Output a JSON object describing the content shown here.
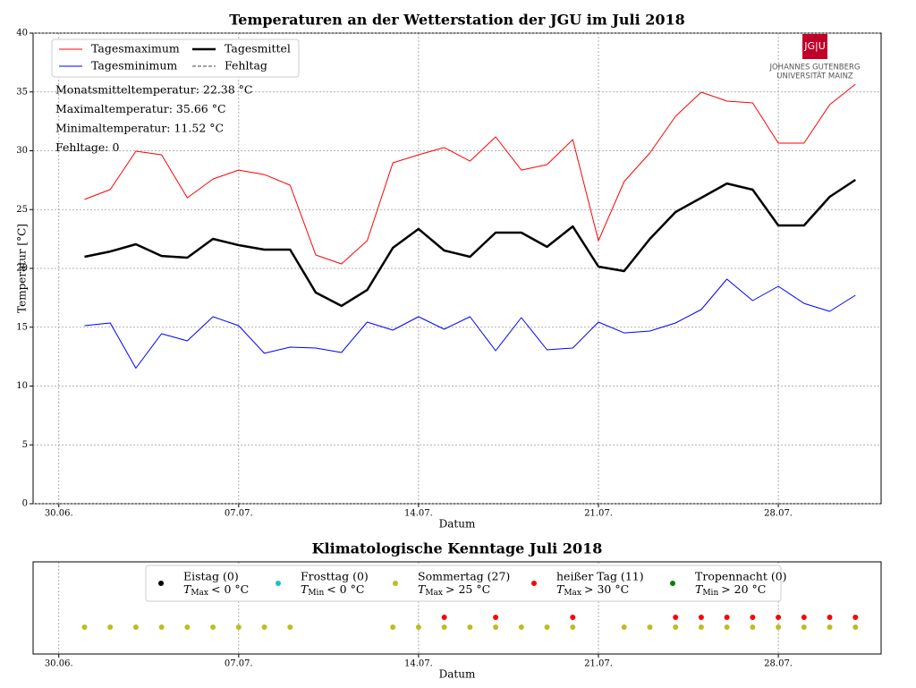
{
  "chart_data": [
    {
      "type": "line",
      "title": "Temperaturen an der Wetterstation der JGU im Juli 2018",
      "xlabel": "Datum",
      "ylabel": "Temperatur [°C]",
      "x": [
        "01.07.",
        "02.07.",
        "03.07.",
        "04.07.",
        "05.07.",
        "06.07.",
        "07.07.",
        "08.07.",
        "09.07.",
        "10.07.",
        "11.07.",
        "12.07.",
        "13.07.",
        "14.07.",
        "15.07.",
        "16.07.",
        "17.07.",
        "18.07.",
        "19.07.",
        "20.07.",
        "21.07.",
        "22.07.",
        "23.07.",
        "24.07.",
        "25.07.",
        "26.07.",
        "27.07.",
        "28.07.",
        "29.07.",
        "30.07.",
        "31.07."
      ],
      "series": [
        {
          "name": "Tagesmaximum",
          "color": "#ff0000",
          "linewidth": 1,
          "values": [
            25.86,
            26.7,
            29.96,
            29.66,
            26.0,
            27.6,
            28.36,
            27.98,
            27.07,
            21.14,
            20.38,
            22.36,
            28.97,
            29.66,
            30.27,
            29.12,
            31.18,
            28.36,
            28.82,
            30.95,
            22.36,
            27.38,
            29.81,
            32.93,
            34.98,
            34.22,
            34.07,
            30.65,
            30.65,
            33.92,
            35.66
          ]
        },
        {
          "name": "Tagesminimum",
          "color": "#0000ff",
          "linewidth": 1,
          "values": [
            15.13,
            15.36,
            11.52,
            14.45,
            13.84,
            15.89,
            15.13,
            12.78,
            13.31,
            13.23,
            12.85,
            15.44,
            14.75,
            15.89,
            14.83,
            15.89,
            13.0,
            15.82,
            13.08,
            13.23,
            15.44,
            14.52,
            14.68,
            15.36,
            16.5,
            19.09,
            17.26,
            18.48,
            17.03,
            16.35,
            17.72
          ]
        },
        {
          "name": "Tagesmittel",
          "color": "#000000",
          "linewidth": 2.5,
          "values": [
            20.99,
            21.44,
            22.05,
            21.06,
            20.91,
            22.51,
            21.98,
            21.6,
            21.6,
            17.95,
            16.81,
            18.17,
            21.75,
            23.35,
            21.52,
            20.99,
            23.04,
            23.04,
            21.83,
            23.57,
            20.15,
            19.77,
            22.51,
            24.79,
            26.0,
            27.22,
            26.69,
            23.65,
            23.65,
            26.08,
            27.53
          ]
        }
      ],
      "legend_extra": [
        {
          "name": "Fehltag",
          "color": "#444444",
          "dashed": true
        }
      ],
      "legend": "upper left",
      "annotations": [
        "Monatsmitteltemperatur: 22.38 °C",
        "Maximaltemperatur: 35.66 °C",
        "Minimaltemperatur: 11.52 °C",
        "Fehltage: 0"
      ],
      "xlim": [
        "29.06.",
        "01.08."
      ],
      "xticks": [
        "30.06.",
        "07.07.",
        "14.07.",
        "21.07.",
        "28.07."
      ],
      "ylim": [
        0,
        40
      ],
      "yticks": [
        0,
        5,
        10,
        15,
        20,
        25,
        30,
        35,
        40
      ],
      "grid": true
    },
    {
      "type": "scatter",
      "title": "Klimatologische Kenntage Juli 2018",
      "xlabel": "Datum",
      "series": [
        {
          "name": "Eistag (0)",
          "color": "#000000",
          "criterion": {
            "var": "T",
            "sub": "Max",
            "rest": "< 0 °C"
          },
          "dates": []
        },
        {
          "name": "Frosttag (0)",
          "color": "#17becf",
          "criterion": {
            "var": "T",
            "sub": "Min",
            "rest": "< 0 °C"
          },
          "dates": []
        },
        {
          "name": "Sommertag (27)",
          "color": "#bcbd22",
          "criterion": {
            "var": "T",
            "sub": "Max",
            "rest": "> 25 °C"
          },
          "dates": [
            "01.07.",
            "02.07.",
            "03.07.",
            "04.07.",
            "05.07.",
            "06.07.",
            "07.07.",
            "08.07.",
            "09.07.",
            "13.07.",
            "14.07.",
            "15.07.",
            "16.07.",
            "17.07.",
            "18.07.",
            "19.07.",
            "20.07.",
            "22.07.",
            "23.07.",
            "24.07.",
            "25.07.",
            "26.07.",
            "27.07.",
            "28.07.",
            "29.07.",
            "30.07.",
            "31.07."
          ]
        },
        {
          "name": "heißer Tag (11)",
          "color": "#ff0000",
          "criterion": {
            "var": "T",
            "sub": "Max",
            "rest": "> 30 °C"
          },
          "dates": [
            "15.07.",
            "17.07.",
            "20.07.",
            "24.07.",
            "25.07.",
            "26.07.",
            "27.07.",
            "28.07.",
            "29.07.",
            "30.07.",
            "31.07."
          ]
        },
        {
          "name": "Tropennacht (0)",
          "color": "#008000",
          "criterion": {
            "var": "T",
            "sub": "Min",
            "rest": "> 20 °C"
          },
          "dates": []
        }
      ],
      "xlim": [
        "29.06.",
        "01.08."
      ],
      "xticks": [
        "30.06.",
        "07.07.",
        "14.07.",
        "21.07.",
        "28.07."
      ],
      "grid": true
    }
  ],
  "logo": {
    "mark": "JG|U",
    "line1": "JOHANNES GUTENBERG",
    "line2": "UNIVERSITÄT MAINZ"
  }
}
